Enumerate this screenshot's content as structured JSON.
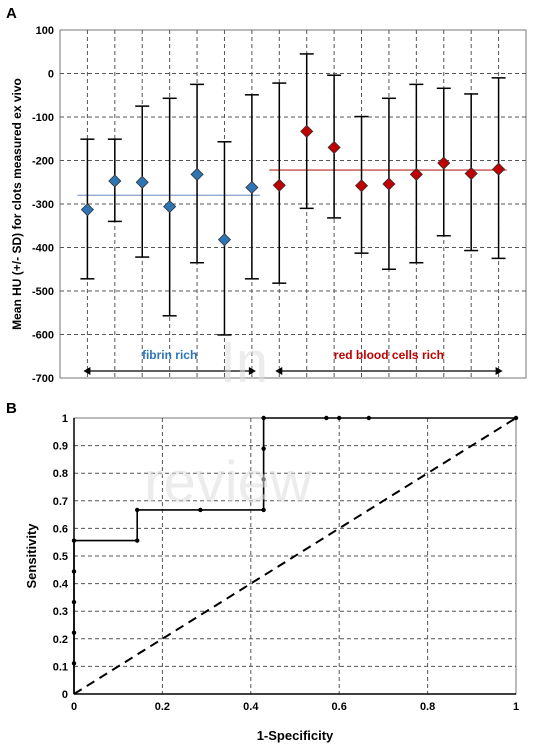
{
  "panel_a": {
    "label": "A",
    "chart_data": {
      "type": "scatter",
      "ylabel": "Mean HU (+/- SD) for clots measured ex vivo",
      "xlabel": "",
      "ylim": [
        -700,
        100
      ],
      "yticks": [
        100,
        0,
        -100,
        -200,
        -300,
        -400,
        -500,
        -600,
        -700
      ],
      "grid": true,
      "groups": [
        {
          "name": "fibrin rich",
          "color": "#2e75b6",
          "mean_line": -280,
          "line_color": "#8faad0"
        },
        {
          "name": "red blood cells rich",
          "color": "#c00000",
          "mean_line": -222,
          "line_color": "#c0504d"
        }
      ],
      "points": [
        {
          "group": 0,
          "mean": -313,
          "lower": -472,
          "upper": -151
        },
        {
          "group": 0,
          "mean": -247,
          "lower": -340,
          "upper": -151
        },
        {
          "group": 0,
          "mean": -250,
          "lower": -422,
          "upper": -75
        },
        {
          "group": 0,
          "mean": -306,
          "lower": -557,
          "upper": -57
        },
        {
          "group": 0,
          "mean": -232,
          "lower": -435,
          "upper": -25
        },
        {
          "group": 0,
          "mean": -382,
          "lower": -601,
          "upper": -157
        },
        {
          "group": 0,
          "mean": -262,
          "lower": -472,
          "upper": -49
        },
        {
          "group": 1,
          "mean": -257,
          "lower": -482,
          "upper": -22
        },
        {
          "group": 1,
          "mean": -133,
          "lower": -310,
          "upper": 45
        },
        {
          "group": 1,
          "mean": -170,
          "lower": -332,
          "upper": -4
        },
        {
          "group": 1,
          "mean": -258,
          "lower": -413,
          "upper": -99
        },
        {
          "group": 1,
          "mean": -254,
          "lower": -450,
          "upper": -57
        },
        {
          "group": 1,
          "mean": -232,
          "lower": -435,
          "upper": -25
        },
        {
          "group": 1,
          "mean": -206,
          "lower": -373,
          "upper": -34
        },
        {
          "group": 1,
          "mean": -230,
          "lower": -407,
          "upper": -47
        },
        {
          "group": 1,
          "mean": -220,
          "lower": -425,
          "upper": -10
        }
      ]
    }
  },
  "panel_b": {
    "label": "B",
    "chart_data": {
      "type": "line",
      "xlabel": "1-Specificity",
      "ylabel": "Sensitivity",
      "xlim": [
        0,
        1
      ],
      "ylim": [
        0,
        1
      ],
      "xticks": [
        "0",
        "0.2",
        "0.4",
        "0.6",
        "0.8",
        "1"
      ],
      "yticks": [
        "0",
        "0.1",
        "0.2",
        "0.3",
        "0.4",
        "0.5",
        "0.6",
        "0.7",
        "0.8",
        "0.9",
        "1"
      ],
      "grid": true,
      "series": [
        {
          "style": "solid-step",
          "points": [
            [
              0,
              0.111
            ],
            [
              0,
              0.222
            ],
            [
              0,
              0.333
            ],
            [
              0,
              0.444
            ],
            [
              0,
              0.556
            ],
            [
              0.143,
              0.556
            ],
            [
              0.143,
              0.667
            ],
            [
              0.286,
              0.667
            ],
            [
              0.429,
              0.667
            ],
            [
              0.429,
              0.778
            ],
            [
              0.429,
              0.889
            ],
            [
              0.429,
              1
            ],
            [
              0.571,
              1
            ],
            [
              0.6,
              1
            ],
            [
              0.667,
              1
            ],
            [
              1,
              1
            ]
          ]
        },
        {
          "style": "dashed",
          "points": [
            [
              0,
              0
            ],
            [
              1,
              1
            ]
          ]
        }
      ]
    }
  },
  "watermark": {
    "line1": "In",
    "line2": "review"
  }
}
